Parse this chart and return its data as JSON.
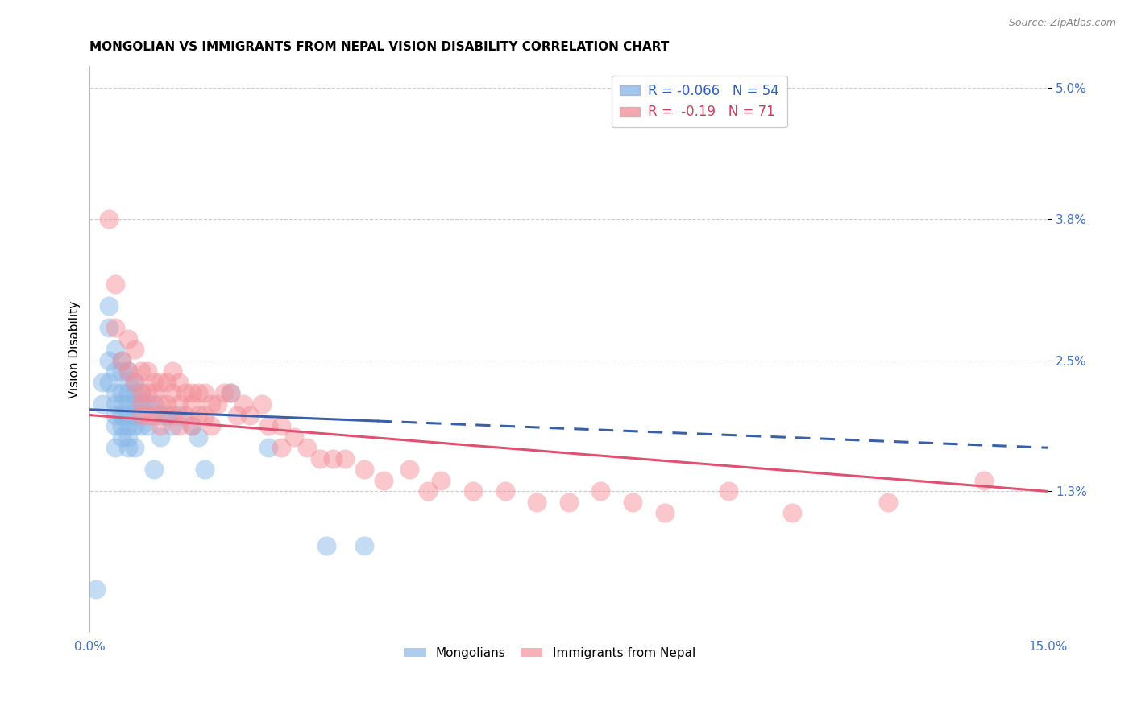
{
  "title": "MONGOLIAN VS IMMIGRANTS FROM NEPAL VISION DISABILITY CORRELATION CHART",
  "source": "Source: ZipAtlas.com",
  "ylabel": "Vision Disability",
  "xlim": [
    0.0,
    0.15
  ],
  "ylim": [
    0.0,
    0.052
  ],
  "yticks": [
    0.013,
    0.025,
    0.038,
    0.05
  ],
  "ytick_labels": [
    "1.3%",
    "2.5%",
    "3.8%",
    "5.0%"
  ],
  "xticks": [
    0.0,
    0.15
  ],
  "xtick_labels": [
    "0.0%",
    "15.0%"
  ],
  "mon_color": "#89b8e8",
  "nep_color": "#f4909a",
  "mon_line_color": "#3a5faa",
  "nep_line_color": "#e05070",
  "background_color": "#ffffff",
  "grid_color": "#cccccc",
  "title_fontsize": 11,
  "label_fontsize": 11,
  "tick_fontsize": 11,
  "mon_R": -0.066,
  "mon_N": 54,
  "nep_R": -0.19,
  "nep_N": 71,
  "mon_line": {
    "x0": 0.0,
    "y0": 0.0205,
    "x1": 0.15,
    "y1": 0.017,
    "solid_end": 0.045
  },
  "nep_line": {
    "x0": 0.0,
    "y0": 0.02,
    "x1": 0.15,
    "y1": 0.013
  },
  "mon_x": [
    0.001,
    0.002,
    0.002,
    0.003,
    0.003,
    0.003,
    0.003,
    0.004,
    0.004,
    0.004,
    0.004,
    0.004,
    0.004,
    0.004,
    0.005,
    0.005,
    0.005,
    0.005,
    0.005,
    0.005,
    0.005,
    0.006,
    0.006,
    0.006,
    0.006,
    0.006,
    0.006,
    0.006,
    0.006,
    0.007,
    0.007,
    0.007,
    0.007,
    0.007,
    0.007,
    0.008,
    0.008,
    0.008,
    0.009,
    0.009,
    0.01,
    0.01,
    0.011,
    0.011,
    0.012,
    0.013,
    0.014,
    0.016,
    0.017,
    0.018,
    0.022,
    0.028,
    0.037,
    0.043
  ],
  "mon_y": [
    0.004,
    0.023,
    0.021,
    0.03,
    0.028,
    0.025,
    0.023,
    0.026,
    0.024,
    0.022,
    0.021,
    0.02,
    0.019,
    0.017,
    0.025,
    0.024,
    0.022,
    0.021,
    0.02,
    0.019,
    0.018,
    0.024,
    0.023,
    0.022,
    0.021,
    0.02,
    0.019,
    0.018,
    0.017,
    0.023,
    0.022,
    0.021,
    0.02,
    0.019,
    0.017,
    0.022,
    0.021,
    0.019,
    0.021,
    0.019,
    0.021,
    0.015,
    0.02,
    0.018,
    0.02,
    0.019,
    0.02,
    0.019,
    0.018,
    0.015,
    0.022,
    0.017,
    0.008,
    0.008
  ],
  "nep_x": [
    0.003,
    0.004,
    0.004,
    0.005,
    0.006,
    0.006,
    0.007,
    0.007,
    0.008,
    0.008,
    0.008,
    0.008,
    0.009,
    0.009,
    0.009,
    0.01,
    0.01,
    0.01,
    0.011,
    0.011,
    0.011,
    0.012,
    0.012,
    0.013,
    0.013,
    0.013,
    0.014,
    0.014,
    0.014,
    0.015,
    0.015,
    0.016,
    0.016,
    0.016,
    0.017,
    0.017,
    0.018,
    0.018,
    0.019,
    0.019,
    0.02,
    0.021,
    0.022,
    0.023,
    0.024,
    0.025,
    0.027,
    0.028,
    0.03,
    0.03,
    0.032,
    0.034,
    0.036,
    0.038,
    0.04,
    0.043,
    0.046,
    0.05,
    0.053,
    0.055,
    0.06,
    0.065,
    0.07,
    0.075,
    0.08,
    0.085,
    0.09,
    0.1,
    0.11,
    0.125,
    0.14
  ],
  "nep_y": [
    0.038,
    0.032,
    0.028,
    0.025,
    0.027,
    0.024,
    0.026,
    0.023,
    0.024,
    0.022,
    0.021,
    0.02,
    0.024,
    0.022,
    0.02,
    0.023,
    0.022,
    0.02,
    0.023,
    0.021,
    0.019,
    0.023,
    0.021,
    0.024,
    0.022,
    0.02,
    0.023,
    0.021,
    0.019,
    0.022,
    0.02,
    0.022,
    0.021,
    0.019,
    0.022,
    0.02,
    0.022,
    0.02,
    0.021,
    0.019,
    0.021,
    0.022,
    0.022,
    0.02,
    0.021,
    0.02,
    0.021,
    0.019,
    0.019,
    0.017,
    0.018,
    0.017,
    0.016,
    0.016,
    0.016,
    0.015,
    0.014,
    0.015,
    0.013,
    0.014,
    0.013,
    0.013,
    0.012,
    0.012,
    0.013,
    0.012,
    0.011,
    0.013,
    0.011,
    0.012,
    0.014
  ]
}
